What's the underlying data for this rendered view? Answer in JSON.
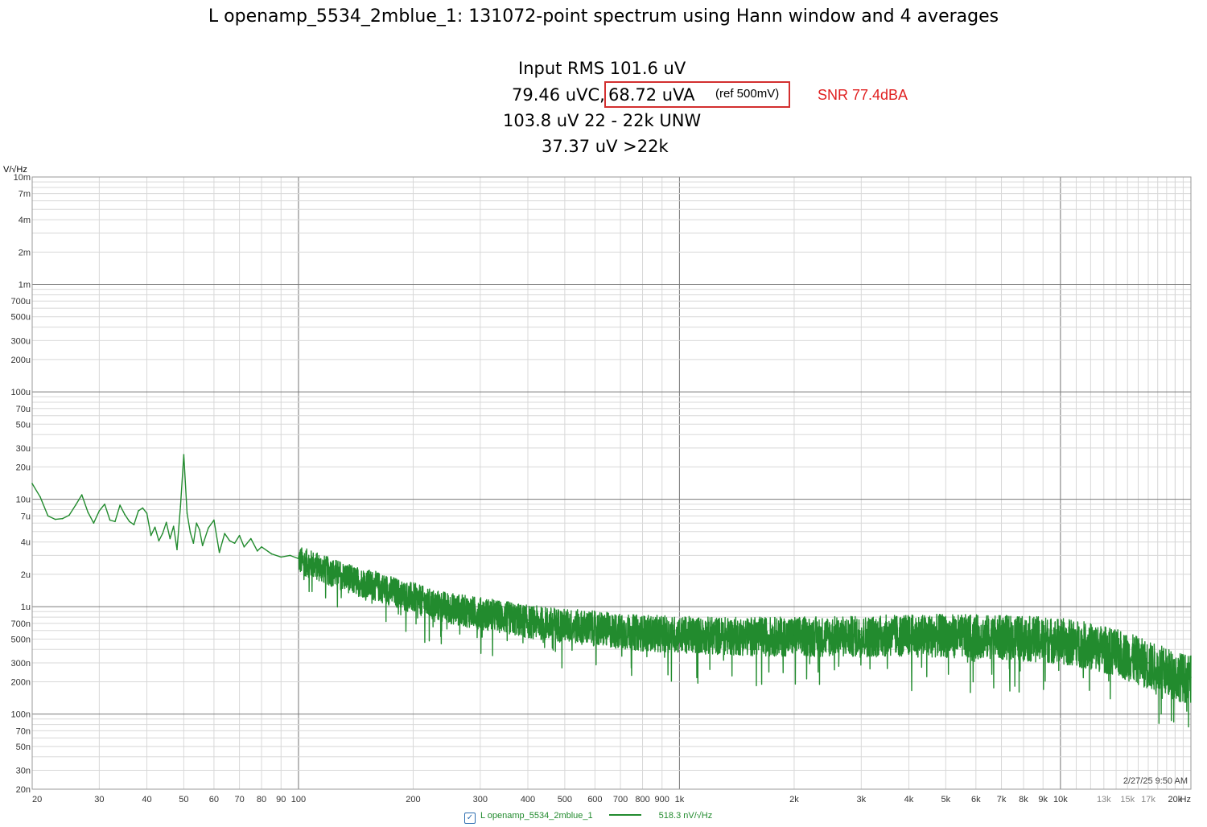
{
  "chart_data": {
    "type": "line",
    "title": "L openamp_5534_2mblue_1: 131072-point spectrum using Hann window and 4 averages",
    "ylabel": "V/√Hz",
    "xlabel": "",
    "x_scale": "log",
    "y_scale": "log",
    "xlim": [
      20,
      22000
    ],
    "ylim": [
      2e-08,
      0.01
    ],
    "x_ticks": [
      {
        "v": 20,
        "label": "20",
        "major": true
      },
      {
        "v": 30,
        "label": "30"
      },
      {
        "v": 40,
        "label": "40"
      },
      {
        "v": 50,
        "label": "50"
      },
      {
        "v": 60,
        "label": "60"
      },
      {
        "v": 70,
        "label": "70"
      },
      {
        "v": 80,
        "label": "80"
      },
      {
        "v": 90,
        "label": "90"
      },
      {
        "v": 100,
        "label": "100",
        "major": true
      },
      {
        "v": 200,
        "label": "200"
      },
      {
        "v": 300,
        "label": "300"
      },
      {
        "v": 400,
        "label": "400"
      },
      {
        "v": 500,
        "label": "500"
      },
      {
        "v": 600,
        "label": "600"
      },
      {
        "v": 700,
        "label": "700"
      },
      {
        "v": 800,
        "label": "800"
      },
      {
        "v": 900,
        "label": "900"
      },
      {
        "v": 1000,
        "label": "1k",
        "major": true
      },
      {
        "v": 2000,
        "label": "2k"
      },
      {
        "v": 3000,
        "label": "3k"
      },
      {
        "v": 4000,
        "label": "4k"
      },
      {
        "v": 5000,
        "label": "5k"
      },
      {
        "v": 6000,
        "label": "6k"
      },
      {
        "v": 7000,
        "label": "7k"
      },
      {
        "v": 8000,
        "label": "8k"
      },
      {
        "v": 9000,
        "label": "9k"
      },
      {
        "v": 10000,
        "label": "10k",
        "major": true
      },
      {
        "v": 11000,
        "label": ""
      },
      {
        "v": 12000,
        "label": ""
      },
      {
        "v": 13000,
        "label": "13k"
      },
      {
        "v": 14000,
        "label": ""
      },
      {
        "v": 15000,
        "label": "15k"
      },
      {
        "v": 16000,
        "label": ""
      },
      {
        "v": 17000,
        "label": "17k"
      },
      {
        "v": 18000,
        "label": ""
      },
      {
        "v": 19000,
        "label": ""
      },
      {
        "v": 20000,
        "label": "20k"
      },
      {
        "v": 21000,
        "label": ""
      },
      {
        "v": 22000,
        "label": "Hz"
      }
    ],
    "y_ticks": [
      {
        "v": 0.01,
        "label": "10m"
      },
      {
        "v": 0.007,
        "label": "7m"
      },
      {
        "v": 0.004,
        "label": "4m"
      },
      {
        "v": 0.002,
        "label": "2m"
      },
      {
        "v": 0.001,
        "label": "1m"
      },
      {
        "v": 0.0007,
        "label": "700u"
      },
      {
        "v": 0.0005,
        "label": "500u"
      },
      {
        "v": 0.0003,
        "label": "300u"
      },
      {
        "v": 0.0002,
        "label": "200u"
      },
      {
        "v": 0.0001,
        "label": "100u"
      },
      {
        "v": 7e-05,
        "label": "70u"
      },
      {
        "v": 5e-05,
        "label": "50u"
      },
      {
        "v": 3e-05,
        "label": "30u"
      },
      {
        "v": 2e-05,
        "label": "20u"
      },
      {
        "v": 1e-05,
        "label": "10u"
      },
      {
        "v": 7e-06,
        "label": "7u"
      },
      {
        "v": 4e-06,
        "label": "4u"
      },
      {
        "v": 2e-06,
        "label": "2u"
      },
      {
        "v": 1e-06,
        "label": "1u"
      },
      {
        "v": 7e-07,
        "label": "700n"
      },
      {
        "v": 5e-07,
        "label": "500n"
      },
      {
        "v": 3e-07,
        "label": "300n"
      },
      {
        "v": 2e-07,
        "label": "200n"
      },
      {
        "v": 1e-07,
        "label": "100n"
      },
      {
        "v": 7e-08,
        "label": "70n"
      },
      {
        "v": 5e-08,
        "label": "50n"
      },
      {
        "v": 3e-08,
        "label": "30n"
      },
      {
        "v": 2e-08,
        "label": "20n"
      }
    ],
    "grid": true,
    "series": [
      {
        "name": "L openamp_5534_2mblue_1",
        "color": "#228b2e",
        "x": [
          20,
          21,
          22,
          23,
          24,
          25,
          26,
          27,
          28,
          29,
          30,
          31,
          32,
          33,
          34,
          35,
          36,
          37,
          38,
          39,
          40,
          41,
          42,
          43,
          44,
          45,
          46,
          47,
          48,
          49,
          50,
          51,
          52,
          53,
          54,
          55,
          56,
          58,
          60,
          62,
          64,
          66,
          68,
          70,
          72,
          75,
          78,
          80,
          85,
          90,
          95,
          100,
          110,
          120,
          130,
          140,
          150,
          160,
          175,
          190,
          200,
          220,
          250,
          280,
          300,
          350,
          400,
          450,
          500,
          550,
          600,
          650,
          700,
          800,
          900,
          1000,
          1200,
          1500,
          1700,
          2000,
          2500,
          3000,
          3500,
          4000,
          5000,
          6000,
          7000,
          8000,
          9000,
          10000,
          11000,
          12000,
          13000,
          14000,
          15000,
          16000,
          17000,
          18000,
          19000,
          20000,
          21000,
          22000
        ],
        "y": [
          1.4e-05,
          1.05e-05,
          7e-06,
          6.5e-06,
          6.6e-06,
          7.1e-06,
          8.8e-06,
          1.1e-05,
          7.6e-06,
          6e-06,
          7.8e-06,
          9e-06,
          6.4e-06,
          6.2e-06,
          8.8e-06,
          7.2e-06,
          6.2e-06,
          5.8e-06,
          7.8e-06,
          8.3e-06,
          7.4e-06,
          4.6e-06,
          5.5e-06,
          4.1e-06,
          4.8e-06,
          6.1e-06,
          4.3e-06,
          5.6e-06,
          3.4e-06,
          8.6e-06,
          2.6e-05,
          7.4e-06,
          4.9e-06,
          3.9e-06,
          6e-06,
          5.2e-06,
          3.7e-06,
          5.4e-06,
          6.4e-06,
          3.2e-06,
          4.8e-06,
          4.1e-06,
          3.9e-06,
          4.6e-06,
          3.6e-06,
          4.3e-06,
          3.3e-06,
          3.6e-06,
          3.1e-06,
          2.9e-06,
          3e-06,
          2.8e-06,
          2.5e-06,
          2.2e-06,
          2e-06,
          1.8e-06,
          1.7e-06,
          1.6e-06,
          1.45e-06,
          1.3e-06,
          1.25e-06,
          1.1e-06,
          1e-06,
          9.3e-07,
          9e-07,
          8.2e-07,
          7.5e-07,
          7.2e-07,
          6.9e-07,
          6.7e-07,
          6.5e-07,
          6.3e-07,
          6.1e-07,
          5.9e-07,
          5.8e-07,
          5.7e-07,
          5.6e-07,
          5.5e-07,
          5.5e-07,
          5.5e-07,
          5.5e-07,
          5.5e-07,
          5.6e-07,
          5.6e-07,
          5.6e-07,
          5.5e-07,
          5.4e-07,
          5.3e-07,
          5.2e-07,
          5e-07,
          4.8e-07,
          4.5e-07,
          4.2e-07,
          3.9e-07,
          3.6e-07,
          3.3e-07,
          3e-07,
          2.8e-07,
          2.6e-07,
          2.4e-07,
          2.3e-07,
          2.2e-07
        ]
      }
    ]
  },
  "stats": {
    "input_rms": "Input RMS 101.6 uV",
    "c_weighted": "79.46 uVC,",
    "a_weighted": "68.72 uVA",
    "ref_note": "(ref 500mV)",
    "snr": "SNR 77.4dBA",
    "unweighted": "103.8 uV 22 - 22k UNW",
    "above_22k": "37.37 uV >22k"
  },
  "timestamp": "2/27/25 9:50 AM",
  "legend": {
    "label": "L openamp_5534_2mblue_1",
    "value": "518.3 nV/√Hz",
    "checked": true
  }
}
